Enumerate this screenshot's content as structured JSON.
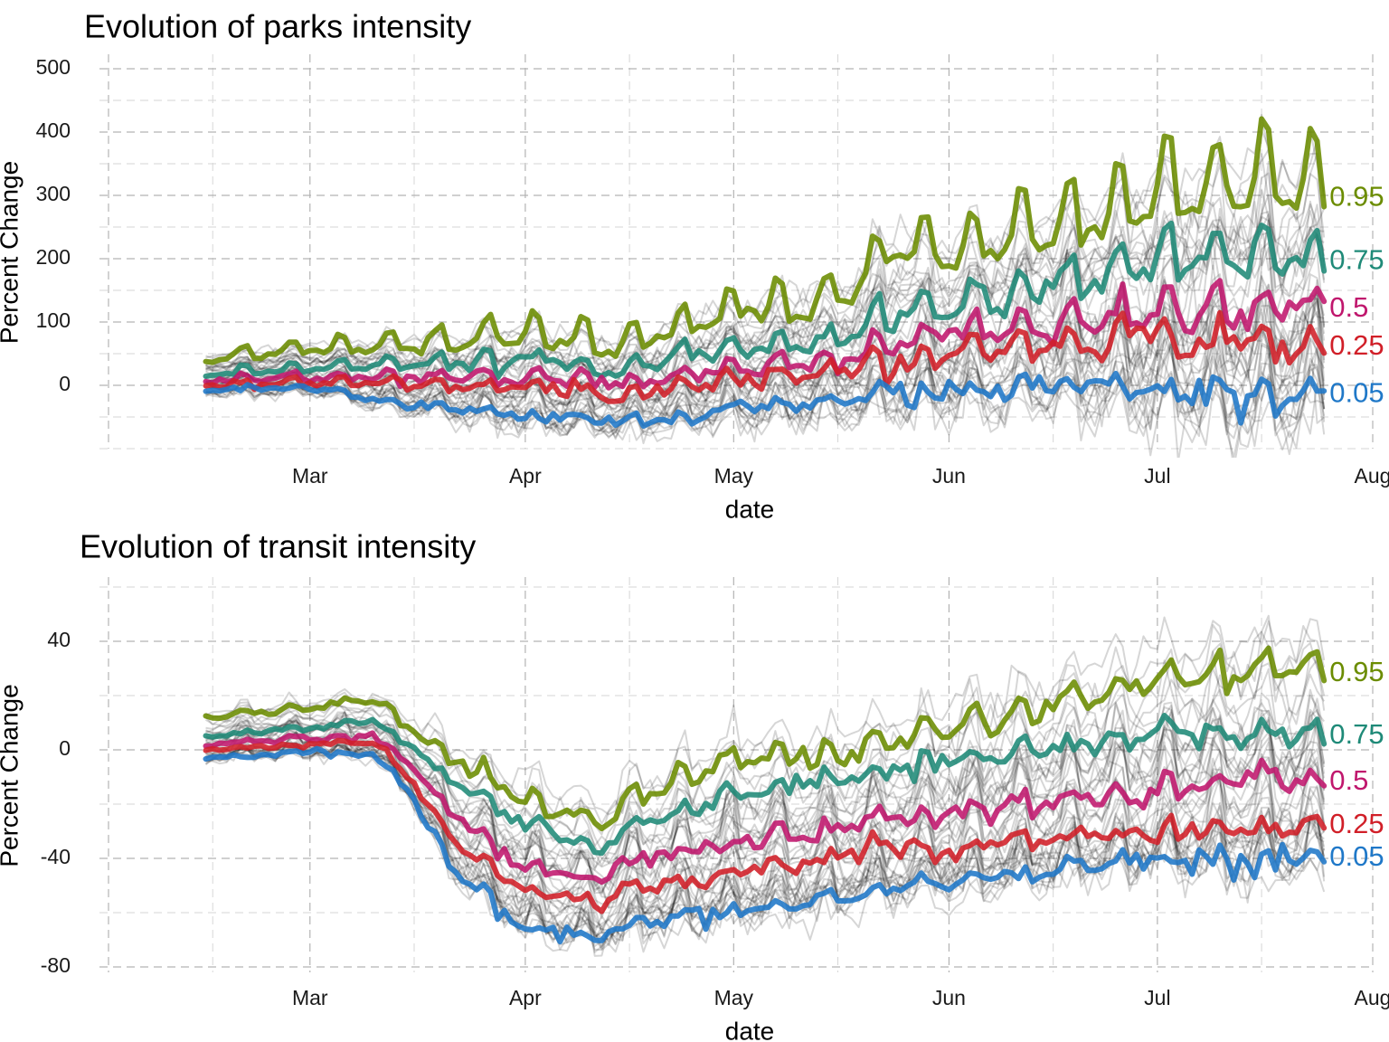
{
  "chart_data": [
    {
      "type": "line",
      "title": "Evolution of parks intensity",
      "xlabel": "date",
      "ylabel": "Percent Change",
      "x_range": [
        "2020-02-15",
        "2020-07-25"
      ],
      "xlim": [
        "2020-02-01",
        "2020-08-01"
      ],
      "x_ticks": [
        {
          "date": "2020-03-01",
          "label": "Mar"
        },
        {
          "date": "2020-04-01",
          "label": "Apr"
        },
        {
          "date": "2020-05-01",
          "label": "May"
        },
        {
          "date": "2020-06-01",
          "label": "Jun"
        },
        {
          "date": "2020-07-01",
          "label": "Jul"
        },
        {
          "date": "2020-08-01",
          "label": "Aug"
        }
      ],
      "ylim": [
        -100,
        520
      ],
      "y_ticks": [
        {
          "value": 0,
          "label": "0"
        },
        {
          "value": 100,
          "label": "100"
        },
        {
          "value": 200,
          "label": "200"
        },
        {
          "value": 300,
          "label": "300"
        },
        {
          "value": 400,
          "label": "400"
        },
        {
          "value": 500,
          "label": "500"
        }
      ],
      "grid": true,
      "background_series_count": 40,
      "weekly_cycle": true,
      "quantiles": [
        {
          "label": "0.95",
          "color": "#6b8c00",
          "points": [
            [
              "2020-02-15",
              40
            ],
            [
              "2020-03-01",
              55
            ],
            [
              "2020-03-15",
              60
            ],
            [
              "2020-04-01",
              75
            ],
            [
              "2020-04-15",
              55
            ],
            [
              "2020-05-01",
              110
            ],
            [
              "2020-05-15",
              125
            ],
            [
              "2020-05-25",
              210
            ],
            [
              "2020-06-01",
              195
            ],
            [
              "2020-06-15",
              240
            ],
            [
              "2020-07-01",
              280
            ],
            [
              "2020-07-15",
              305
            ],
            [
              "2020-07-25",
              295
            ]
          ]
        },
        {
          "label": "0.75",
          "color": "#1f8a78",
          "points": [
            [
              "2020-02-15",
              18
            ],
            [
              "2020-03-01",
              25
            ],
            [
              "2020-03-15",
              30
            ],
            [
              "2020-04-01",
              35
            ],
            [
              "2020-04-15",
              22
            ],
            [
              "2020-05-01",
              55
            ],
            [
              "2020-05-15",
              65
            ],
            [
              "2020-05-25",
              105
            ],
            [
              "2020-06-01",
              115
            ],
            [
              "2020-06-15",
              145
            ],
            [
              "2020-07-01",
              185
            ],
            [
              "2020-07-15",
              195
            ],
            [
              "2020-07-25",
              195
            ]
          ]
        },
        {
          "label": "0.5",
          "color": "#c0176d",
          "points": [
            [
              "2020-02-15",
              8
            ],
            [
              "2020-03-01",
              12
            ],
            [
              "2020-03-15",
              12
            ],
            [
              "2020-04-01",
              10
            ],
            [
              "2020-04-15",
              0
            ],
            [
              "2020-05-01",
              20
            ],
            [
              "2020-05-15",
              35
            ],
            [
              "2020-05-25",
              60
            ],
            [
              "2020-06-01",
              80
            ],
            [
              "2020-06-15",
              90
            ],
            [
              "2020-07-01",
              110
            ],
            [
              "2020-07-15",
              110
            ],
            [
              "2020-07-25",
              120
            ]
          ]
        },
        {
          "label": "0.25",
          "color": "#d11f28",
          "points": [
            [
              "2020-02-15",
              0
            ],
            [
              "2020-03-01",
              5
            ],
            [
              "2020-03-15",
              0
            ],
            [
              "2020-04-01",
              -8
            ],
            [
              "2020-04-15",
              -15
            ],
            [
              "2020-05-01",
              5
            ],
            [
              "2020-05-15",
              18
            ],
            [
              "2020-05-25",
              30
            ],
            [
              "2020-06-01",
              45
            ],
            [
              "2020-06-15",
              55
            ],
            [
              "2020-07-01",
              68
            ],
            [
              "2020-07-15",
              60
            ],
            [
              "2020-07-25",
              60
            ]
          ]
        },
        {
          "label": "0.05",
          "color": "#1f78c8",
          "points": [
            [
              "2020-02-15",
              -8
            ],
            [
              "2020-03-01",
              -5
            ],
            [
              "2020-03-15",
              -30
            ],
            [
              "2020-04-01",
              -50
            ],
            [
              "2020-04-15",
              -60
            ],
            [
              "2020-05-01",
              -40
            ],
            [
              "2020-05-15",
              -30
            ],
            [
              "2020-05-25",
              -15
            ],
            [
              "2020-06-01",
              -15
            ],
            [
              "2020-06-15",
              0
            ],
            [
              "2020-07-01",
              -10
            ],
            [
              "2020-07-15",
              -20
            ],
            [
              "2020-07-25",
              -15
            ]
          ]
        }
      ]
    },
    {
      "type": "line",
      "title": "Evolution of transit intensity",
      "xlabel": "date",
      "ylabel": "Percent Change",
      "x_range": [
        "2020-02-15",
        "2020-07-25"
      ],
      "xlim": [
        "2020-02-01",
        "2020-08-01"
      ],
      "x_ticks": [
        {
          "date": "2020-03-01",
          "label": "Mar"
        },
        {
          "date": "2020-04-01",
          "label": "Apr"
        },
        {
          "date": "2020-05-01",
          "label": "May"
        },
        {
          "date": "2020-06-01",
          "label": "Jun"
        },
        {
          "date": "2020-07-01",
          "label": "Jul"
        },
        {
          "date": "2020-08-01",
          "label": "Aug"
        }
      ],
      "ylim": [
        -82,
        63
      ],
      "y_ticks": [
        {
          "value": -80,
          "label": "-80"
        },
        {
          "value": -40,
          "label": "-40"
        },
        {
          "value": 0,
          "label": "0"
        },
        {
          "value": 40,
          "label": "40"
        }
      ],
      "grid": true,
      "background_series_count": 40,
      "weekly_cycle": true,
      "quantiles": [
        {
          "label": "0.95",
          "color": "#6b8c00",
          "points": [
            [
              "2020-02-15",
              12
            ],
            [
              "2020-03-01",
              15
            ],
            [
              "2020-03-10",
              18
            ],
            [
              "2020-03-15",
              8
            ],
            [
              "2020-03-22",
              -5
            ],
            [
              "2020-04-01",
              -18
            ],
            [
              "2020-04-12",
              -28
            ],
            [
              "2020-04-15",
              -20
            ],
            [
              "2020-05-01",
              -5
            ],
            [
              "2020-05-15",
              -3
            ],
            [
              "2020-05-25",
              2
            ],
            [
              "2020-06-01",
              8
            ],
            [
              "2020-06-15",
              15
            ],
            [
              "2020-07-01",
              25
            ],
            [
              "2020-07-15",
              28
            ],
            [
              "2020-07-25",
              28
            ]
          ]
        },
        {
          "label": "0.75",
          "color": "#1f8a78",
          "points": [
            [
              "2020-02-15",
              5
            ],
            [
              "2020-03-01",
              8
            ],
            [
              "2020-03-10",
              10
            ],
            [
              "2020-03-15",
              2
            ],
            [
              "2020-03-22",
              -12
            ],
            [
              "2020-04-01",
              -28
            ],
            [
              "2020-04-12",
              -38
            ],
            [
              "2020-04-15",
              -30
            ],
            [
              "2020-05-01",
              -18
            ],
            [
              "2020-05-15",
              -12
            ],
            [
              "2020-05-25",
              -8
            ],
            [
              "2020-06-01",
              -5
            ],
            [
              "2020-06-15",
              0
            ],
            [
              "2020-07-01",
              5
            ],
            [
              "2020-07-15",
              5
            ],
            [
              "2020-07-25",
              5
            ]
          ]
        },
        {
          "label": "0.5",
          "color": "#c0176d",
          "points": [
            [
              "2020-02-15",
              2
            ],
            [
              "2020-03-01",
              4
            ],
            [
              "2020-03-10",
              5
            ],
            [
              "2020-03-15",
              -5
            ],
            [
              "2020-03-22",
              -25
            ],
            [
              "2020-04-01",
              -45
            ],
            [
              "2020-04-12",
              -48
            ],
            [
              "2020-04-15",
              -42
            ],
            [
              "2020-05-01",
              -35
            ],
            [
              "2020-05-15",
              -30
            ],
            [
              "2020-05-25",
              -25
            ],
            [
              "2020-06-01",
              -25
            ],
            [
              "2020-06-15",
              -20
            ],
            [
              "2020-07-01",
              -15
            ],
            [
              "2020-07-15",
              -12
            ],
            [
              "2020-07-25",
              -12
            ]
          ]
        },
        {
          "label": "0.25",
          "color": "#d11f28",
          "points": [
            [
              "2020-02-15",
              0
            ],
            [
              "2020-03-01",
              2
            ],
            [
              "2020-03-10",
              3
            ],
            [
              "2020-03-15",
              -10
            ],
            [
              "2020-03-22",
              -35
            ],
            [
              "2020-04-01",
              -52
            ],
            [
              "2020-04-12",
              -57
            ],
            [
              "2020-04-15",
              -52
            ],
            [
              "2020-05-01",
              -45
            ],
            [
              "2020-05-15",
              -40
            ],
            [
              "2020-05-25",
              -35
            ],
            [
              "2020-06-01",
              -38
            ],
            [
              "2020-06-15",
              -33
            ],
            [
              "2020-07-01",
              -30
            ],
            [
              "2020-07-15",
              -30
            ],
            [
              "2020-07-25",
              -28
            ]
          ]
        },
        {
          "label": "0.05",
          "color": "#1f78c8",
          "points": [
            [
              "2020-02-15",
              -3
            ],
            [
              "2020-03-01",
              -1
            ],
            [
              "2020-03-10",
              -2
            ],
            [
              "2020-03-15",
              -15
            ],
            [
              "2020-03-22",
              -45
            ],
            [
              "2020-04-01",
              -65
            ],
            [
              "2020-04-12",
              -70
            ],
            [
              "2020-04-15",
              -66
            ],
            [
              "2020-05-01",
              -60
            ],
            [
              "2020-05-15",
              -55
            ],
            [
              "2020-05-25",
              -50
            ],
            [
              "2020-06-01",
              -50
            ],
            [
              "2020-06-15",
              -45
            ],
            [
              "2020-07-01",
              -40
            ],
            [
              "2020-07-15",
              -42
            ],
            [
              "2020-07-25",
              -40
            ]
          ]
        }
      ]
    }
  ]
}
